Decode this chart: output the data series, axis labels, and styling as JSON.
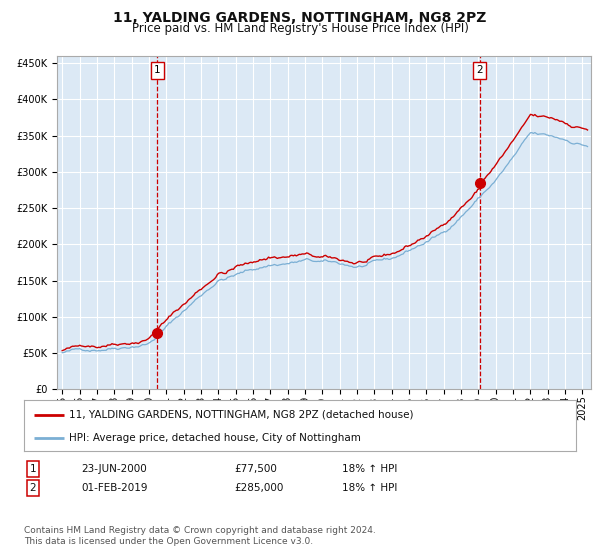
{
  "title": "11, YALDING GARDENS, NOTTINGHAM, NG8 2PZ",
  "subtitle": "Price paid vs. HM Land Registry's House Price Index (HPI)",
  "ylim": [
    0,
    460000
  ],
  "xlim_start": 1994.7,
  "xlim_end": 2025.5,
  "background_color": "#dce9f5",
  "grid_color": "#ffffff",
  "sale1_date": 2000.478,
  "sale1_price": 77500,
  "sale1_label": "1",
  "sale2_date": 2019.083,
  "sale2_price": 285000,
  "sale2_label": "2",
  "red_line_color": "#cc0000",
  "blue_line_color": "#7bafd4",
  "marker_color": "#cc0000",
  "dashed_line_color": "#cc0000",
  "legend_label_red": "11, YALDING GARDENS, NOTTINGHAM, NG8 2PZ (detached house)",
  "legend_label_blue": "HPI: Average price, detached house, City of Nottingham",
  "table_row1": [
    "1",
    "23-JUN-2000",
    "£77,500",
    "18% ↑ HPI"
  ],
  "table_row2": [
    "2",
    "01-FEB-2019",
    "£285,000",
    "18% ↑ HPI"
  ],
  "footnote": "Contains HM Land Registry data © Crown copyright and database right 2024.\nThis data is licensed under the Open Government Licence v3.0.",
  "title_fontsize": 10,
  "subtitle_fontsize": 8.5,
  "tick_fontsize": 7,
  "legend_fontsize": 7.5,
  "table_fontsize": 7.5,
  "footnote_fontsize": 6.5
}
